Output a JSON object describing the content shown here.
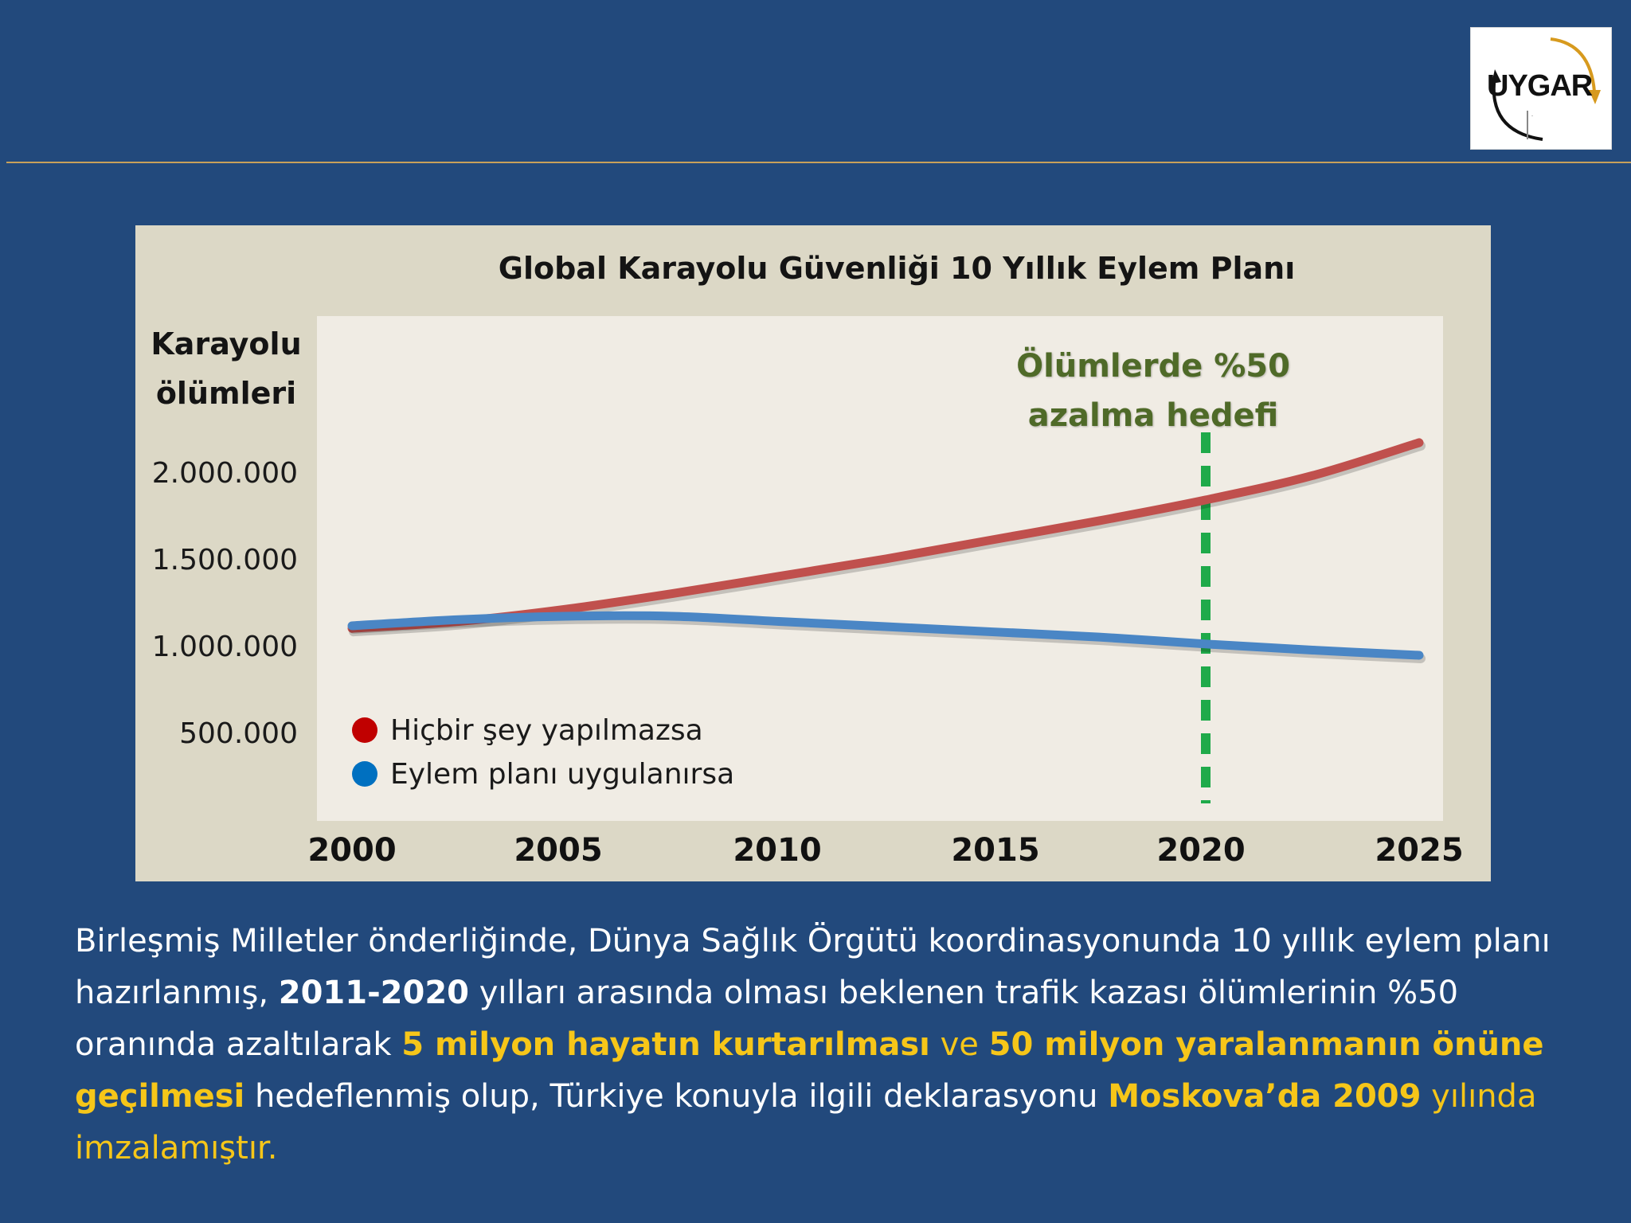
{
  "logo": {
    "text": "UYGAR"
  },
  "chart_data": {
    "type": "line",
    "title": "Global Karayolu Güvenliği 10 Yıllık Eylem Planı",
    "ylabel_lines": [
      "Karayolu",
      "ölümleri"
    ],
    "xlabel": "",
    "x": [
      2000,
      2002.5,
      2005,
      2007.5,
      2010,
      2012.5,
      2015,
      2017.5,
      2020,
      2022.5,
      2025
    ],
    "xticks": [
      2000,
      2005,
      2010,
      2015,
      2020,
      2025
    ],
    "xtick_labels": [
      "2000",
      "2005",
      "2010",
      "2015",
      "2020",
      "2025"
    ],
    "yticks": [
      500000,
      1000000,
      1500000,
      2000000
    ],
    "ytick_labels": [
      "500.000",
      "1.000.000",
      "1.500.000",
      "2.000.000"
    ],
    "xlim": [
      2000,
      2025
    ],
    "ylim": [
      0,
      2150000
    ],
    "grid": false,
    "legend_position": "bottom-left",
    "series": [
      {
        "name": "Hiçbir şey yapılmazsa",
        "color": "#c0504d",
        "values": [
          1100000,
          1140000,
          1210000,
          1300000,
          1400000,
          1500000,
          1610000,
          1720000,
          1840000,
          1980000,
          2170000
        ]
      },
      {
        "name": "Eylem planı uygulanırsa",
        "color": "#4a86c5",
        "values": [
          1115000,
          1150000,
          1170000,
          1170000,
          1140000,
          1110000,
          1080000,
          1050000,
          1010000,
          975000,
          945000
        ]
      }
    ],
    "annotation": {
      "lines": [
        "Ölümlerde %50",
        "azalma hedefi"
      ],
      "x": 2020,
      "line_color": "#1faa4a"
    },
    "legend_colors": [
      "#c00000",
      "#0070c0"
    ]
  },
  "caption": {
    "p1": "Birleşmiş Milletler önderliğinde, Dünya Sağlık Örgütü koordinasyonunda 10 yıllık eylem planı hazırlanmış, ",
    "p2": "2011-2020",
    "p3": " yılları arasında olması beklenen trafik kazası ölümlerinin %50 oranında azaltılarak ",
    "p4": "5 milyon hayatın kurtarılması",
    "p5": " ve ",
    "p6": "50 milyon yaralanmanın önüne geçilmesi",
    "p7": " hedeflenmiş olup, Türkiye konuyla ilgili deklarasyonu ",
    "p8": "Moskova’da  2009",
    "p9": " yılında imzalamıştır."
  },
  "colors": {
    "background": "#22497c",
    "accent": "#f6c619",
    "divider": "#c8a15a"
  }
}
